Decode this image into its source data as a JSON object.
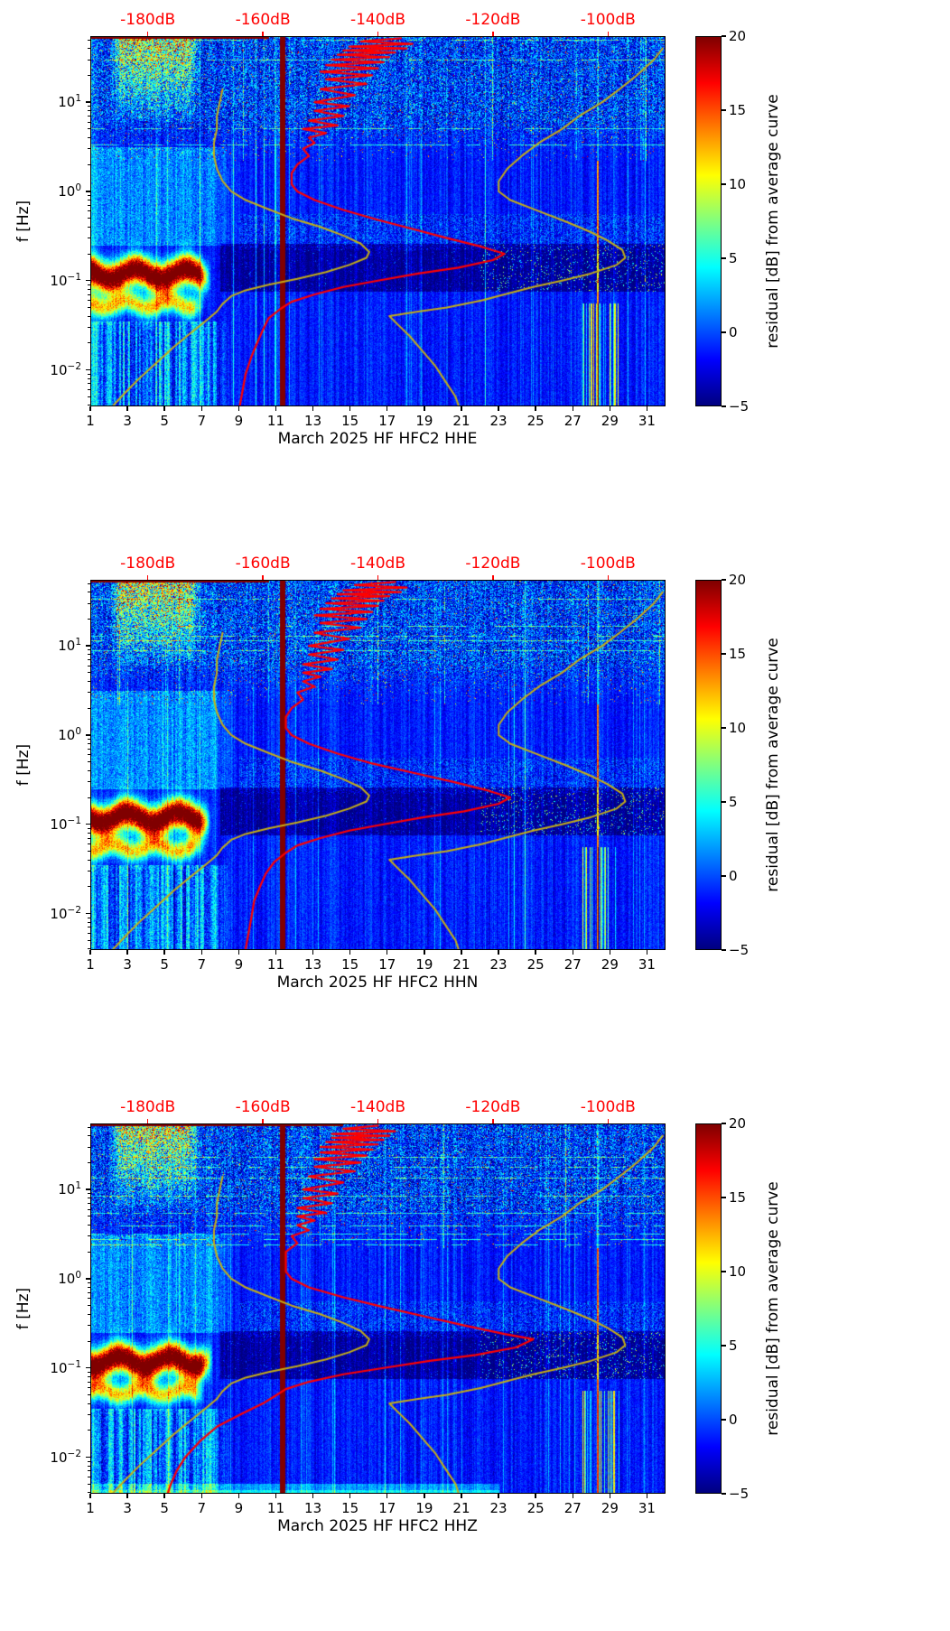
{
  "chart_data": {
    "type": "heatmap",
    "colormap": "jet",
    "style": {
      "station_average_color": "#ff0000",
      "noise_model_color": "#c4ad17",
      "top_axis_color": "#ff0000"
    },
    "x_axis": {
      "label": "day of March 2025",
      "range_days": [
        1,
        32
      ],
      "tick_days": [
        1,
        3,
        5,
        7,
        9,
        11,
        13,
        15,
        17,
        19,
        21,
        23,
        25,
        27,
        29,
        31
      ],
      "tick_labels": [
        "1",
        "3",
        "5",
        "7",
        "9",
        "11",
        "13",
        "15",
        "17",
        "19",
        "21",
        "23",
        "25",
        "27",
        "29",
        "31"
      ]
    },
    "y_axis": {
      "label": "f [Hz]",
      "scale": "log",
      "range_hz": [
        0.0039,
        55
      ],
      "tick_exponents": [
        1,
        0,
        -1,
        -2
      ]
    },
    "top_axis": {
      "range_db": [
        -190,
        -90
      ],
      "tick_values": [
        -180,
        -160,
        -140,
        -120,
        -100
      ],
      "labels": [
        "-180dB",
        "-160dB",
        "-140dB",
        "-120dB",
        "-100dB"
      ]
    },
    "value_axis": {
      "label": "residual [dB] from average curve",
      "range": [
        -5,
        20
      ],
      "tick_values": [
        20,
        15,
        10,
        5,
        0,
        -5
      ],
      "tick_labels": [
        "20",
        "15",
        "10",
        "5",
        "0",
        "−5"
      ]
    },
    "noise_model_low_db_vs_hz": [
      [
        14,
        -167
      ],
      [
        10,
        -167.5
      ],
      [
        7,
        -168
      ],
      [
        5,
        -168
      ],
      [
        3.5,
        -168.5
      ],
      [
        2.5,
        -168.5
      ],
      [
        1.8,
        -168
      ],
      [
        1.3,
        -167
      ],
      [
        1,
        -165.5
      ],
      [
        0.8,
        -163
      ],
      [
        0.63,
        -159
      ],
      [
        0.5,
        -155
      ],
      [
        0.4,
        -150
      ],
      [
        0.32,
        -146
      ],
      [
        0.26,
        -143
      ],
      [
        0.21,
        -141.5
      ],
      [
        0.18,
        -142
      ],
      [
        0.15,
        -145
      ],
      [
        0.125,
        -149
      ],
      [
        0.105,
        -154
      ],
      [
        0.09,
        -159
      ],
      [
        0.078,
        -163
      ],
      [
        0.067,
        -165.5
      ],
      [
        0.055,
        -167
      ],
      [
        0.045,
        -168
      ],
      [
        0.035,
        -170
      ],
      [
        0.026,
        -172.5
      ],
      [
        0.018,
        -175.5
      ],
      [
        0.012,
        -178.5
      ],
      [
        0.008,
        -181.5
      ],
      [
        0.0055,
        -184
      ],
      [
        0.004,
        -186
      ]
    ],
    "noise_model_high_db_vs_hz": [
      [
        40,
        -90.5
      ],
      [
        30,
        -92
      ],
      [
        20,
        -95
      ],
      [
        14,
        -98
      ],
      [
        10,
        -101
      ],
      [
        7,
        -105
      ],
      [
        5,
        -108
      ],
      [
        3.5,
        -112
      ],
      [
        2.5,
        -115
      ],
      [
        1.8,
        -117.5
      ],
      [
        1.3,
        -119
      ],
      [
        1,
        -119
      ],
      [
        0.8,
        -117
      ],
      [
        0.6,
        -112
      ],
      [
        0.45,
        -107
      ],
      [
        0.35,
        -103
      ],
      [
        0.28,
        -100
      ],
      [
        0.22,
        -97.5
      ],
      [
        0.18,
        -97
      ],
      [
        0.15,
        -98.5
      ],
      [
        0.12,
        -103
      ],
      [
        0.1,
        -108
      ],
      [
        0.085,
        -113
      ],
      [
        0.07,
        -118
      ],
      [
        0.06,
        -122
      ],
      [
        0.05,
        -128
      ],
      [
        0.045,
        -133
      ],
      [
        0.04,
        -138
      ],
      [
        0.032,
        -136.5
      ],
      [
        0.024,
        -134.5
      ],
      [
        0.017,
        -132.5
      ],
      [
        0.011,
        -130
      ],
      [
        0.007,
        -128
      ],
      [
        0.005,
        -126.5
      ],
      [
        0.004,
        -126
      ]
    ],
    "panels": [
      {
        "channel": "HHE",
        "xlabel": "March 2025 HF HFC2  HHE",
        "station_average_db_vs_hz": [
          [
            52,
            -136
          ],
          [
            48,
            -143
          ],
          [
            45,
            -134
          ],
          [
            42,
            -145
          ],
          [
            40,
            -135
          ],
          [
            38,
            -146
          ],
          [
            36,
            -137
          ],
          [
            34,
            -147
          ],
          [
            32,
            -138
          ],
          [
            30,
            -148
          ],
          [
            28,
            -139
          ],
          [
            26,
            -149
          ],
          [
            24,
            -140
          ],
          [
            22,
            -150
          ],
          [
            20,
            -141
          ],
          [
            18,
            -149
          ],
          [
            16,
            -142
          ],
          [
            14,
            -150
          ],
          [
            12,
            -144
          ],
          [
            10,
            -151
          ],
          [
            9,
            -145
          ],
          [
            8,
            -151
          ],
          [
            7,
            -146
          ],
          [
            6.2,
            -152
          ],
          [
            5.5,
            -147
          ],
          [
            5,
            -153
          ],
          [
            4.5,
            -149
          ],
          [
            4,
            -152
          ],
          [
            3.5,
            -151
          ],
          [
            3,
            -153
          ],
          [
            2.5,
            -152
          ],
          [
            2,
            -154
          ],
          [
            1.6,
            -155
          ],
          [
            1.2,
            -155
          ],
          [
            1,
            -154
          ],
          [
            0.8,
            -151
          ],
          [
            0.62,
            -146
          ],
          [
            0.48,
            -140
          ],
          [
            0.38,
            -134
          ],
          [
            0.3,
            -128
          ],
          [
            0.24,
            -122
          ],
          [
            0.2,
            -118
          ],
          [
            0.17,
            -120
          ],
          [
            0.14,
            -126
          ],
          [
            0.12,
            -133
          ],
          [
            0.1,
            -140
          ],
          [
            0.085,
            -146
          ],
          [
            0.07,
            -151
          ],
          [
            0.058,
            -155
          ],
          [
            0.048,
            -157
          ],
          [
            0.038,
            -159
          ],
          [
            0.028,
            -160
          ],
          [
            0.02,
            -161
          ],
          [
            0.014,
            -162
          ],
          [
            0.009,
            -163
          ],
          [
            0.006,
            -163.5
          ],
          [
            0.004,
            -164
          ]
        ],
        "features": {
          "seed": 11,
          "microseism_blob": {
            "logf_center": -0.92,
            "days": [
              0,
              7.5
            ],
            "peak_value": 20
          },
          "secondary_blob": {
            "logf_center": -1.26,
            "days": [
              0,
              7.2
            ],
            "peak_value": 12
          },
          "saturated_bar_day": 11.35,
          "thin_red_line_day": 28.32,
          "top_strip_day_end": 10.6,
          "bottom_band": false
        }
      },
      {
        "channel": "HHN",
        "xlabel": "March 2025 HF HFC2  HHN",
        "station_average_db_vs_hz": [
          [
            52,
            -137
          ],
          [
            48,
            -144
          ],
          [
            45,
            -135
          ],
          [
            42,
            -146
          ],
          [
            40,
            -136
          ],
          [
            38,
            -147
          ],
          [
            36,
            -138
          ],
          [
            34,
            -148
          ],
          [
            32,
            -139
          ],
          [
            30,
            -149
          ],
          [
            28,
            -140
          ],
          [
            26,
            -150
          ],
          [
            24,
            -141
          ],
          [
            22,
            -151
          ],
          [
            20,
            -142
          ],
          [
            18,
            -150
          ],
          [
            16,
            -143
          ],
          [
            14,
            -151
          ],
          [
            12,
            -145
          ],
          [
            10,
            -152
          ],
          [
            9,
            -146
          ],
          [
            8,
            -152
          ],
          [
            7,
            -147
          ],
          [
            6.2,
            -153
          ],
          [
            5.5,
            -148
          ],
          [
            5,
            -153
          ],
          [
            4.5,
            -150
          ],
          [
            4,
            -153
          ],
          [
            3.5,
            -151
          ],
          [
            3,
            -154
          ],
          [
            2.5,
            -153
          ],
          [
            2,
            -155
          ],
          [
            1.6,
            -156
          ],
          [
            1.2,
            -156
          ],
          [
            1,
            -155
          ],
          [
            0.8,
            -152
          ],
          [
            0.62,
            -147
          ],
          [
            0.48,
            -141
          ],
          [
            0.38,
            -134
          ],
          [
            0.3,
            -127
          ],
          [
            0.24,
            -121
          ],
          [
            0.2,
            -117
          ],
          [
            0.17,
            -119
          ],
          [
            0.14,
            -125
          ],
          [
            0.12,
            -132
          ],
          [
            0.1,
            -139
          ],
          [
            0.085,
            -145
          ],
          [
            0.07,
            -150
          ],
          [
            0.058,
            -154
          ],
          [
            0.048,
            -156
          ],
          [
            0.038,
            -158
          ],
          [
            0.028,
            -159.5
          ],
          [
            0.02,
            -160.5
          ],
          [
            0.014,
            -161.5
          ],
          [
            0.009,
            -162
          ],
          [
            0.006,
            -162.5
          ],
          [
            0.004,
            -163
          ]
        ],
        "features": {
          "seed": 47,
          "microseism_blob": {
            "logf_center": -0.92,
            "days": [
              0,
              7.5
            ],
            "peak_value": 20
          },
          "secondary_blob": {
            "logf_center": -1.26,
            "days": [
              0,
              7.2
            ],
            "peak_value": 12
          },
          "saturated_bar_day": 11.35,
          "thin_red_line_day": 28.32,
          "top_strip_day_end": 10.6,
          "bottom_band": false
        }
      },
      {
        "channel": "HHZ",
        "xlabel": "March 2025 HF HFC2  HHZ",
        "station_average_db_vs_hz": [
          [
            52,
            -140
          ],
          [
            48,
            -146
          ],
          [
            45,
            -137
          ],
          [
            42,
            -148
          ],
          [
            40,
            -138
          ],
          [
            38,
            -148
          ],
          [
            36,
            -139
          ],
          [
            34,
            -149
          ],
          [
            32,
            -140
          ],
          [
            30,
            -150
          ],
          [
            28,
            -141
          ],
          [
            26,
            -150
          ],
          [
            24,
            -142
          ],
          [
            22,
            -151
          ],
          [
            20,
            -143
          ],
          [
            18,
            -151
          ],
          [
            16,
            -144
          ],
          [
            14,
            -152
          ],
          [
            12,
            -146
          ],
          [
            10,
            -153
          ],
          [
            9,
            -147
          ],
          [
            8,
            -153
          ],
          [
            7,
            -148
          ],
          [
            6.2,
            -154
          ],
          [
            5.5,
            -149
          ],
          [
            5,
            -154
          ],
          [
            4.5,
            -151
          ],
          [
            4,
            -154
          ],
          [
            3.5,
            -152
          ],
          [
            3,
            -155
          ],
          [
            2.5,
            -154
          ],
          [
            2,
            -156
          ],
          [
            1.6,
            -156
          ],
          [
            1.2,
            -156
          ],
          [
            1,
            -155
          ],
          [
            0.8,
            -152
          ],
          [
            0.62,
            -146
          ],
          [
            0.48,
            -139
          ],
          [
            0.38,
            -132
          ],
          [
            0.3,
            -125
          ],
          [
            0.24,
            -118
          ],
          [
            0.21,
            -113
          ],
          [
            0.17,
            -116
          ],
          [
            0.14,
            -123
          ],
          [
            0.12,
            -131
          ],
          [
            0.1,
            -139
          ],
          [
            0.085,
            -146
          ],
          [
            0.07,
            -152
          ],
          [
            0.058,
            -156
          ],
          [
            0.048,
            -158
          ],
          [
            0.04,
            -160
          ],
          [
            0.03,
            -164
          ],
          [
            0.022,
            -168
          ],
          [
            0.015,
            -171
          ],
          [
            0.01,
            -173.5
          ],
          [
            0.007,
            -175
          ],
          [
            0.005,
            -176
          ],
          [
            0.004,
            -176.5
          ]
        ],
        "features": {
          "seed": 83,
          "microseism_blob": {
            "logf_center": -0.92,
            "days": [
              0,
              7.6
            ],
            "peak_value": 20
          },
          "secondary_blob": {
            "logf_center": -1.26,
            "days": [
              0,
              7.2
            ],
            "peak_value": 12
          },
          "saturated_bar_day": 11.35,
          "thin_red_line_day": 28.32,
          "top_strip_day_end": 14.6,
          "bottom_band": true
        }
      }
    ]
  }
}
